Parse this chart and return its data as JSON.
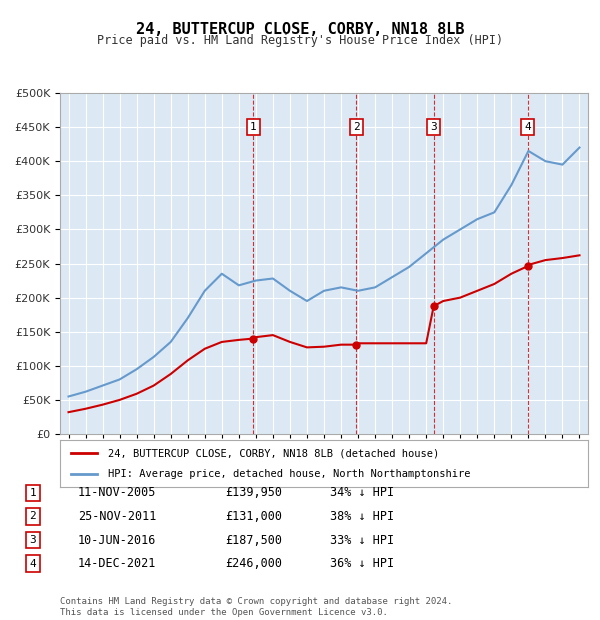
{
  "title": "24, BUTTERCUP CLOSE, CORBY, NN18 8LB",
  "subtitle": "Price paid vs. HM Land Registry's House Price Index (HPI)",
  "background_color": "#dce9f5",
  "plot_bg_color": "#dce9f5",
  "transactions": [
    {
      "num": 1,
      "date": "11-NOV-2005",
      "date_x": 2005.86,
      "price": 139950,
      "label": "34% ↓ HPI"
    },
    {
      "num": 2,
      "date": "25-NOV-2011",
      "date_x": 2011.9,
      "price": 131000,
      "label": "38% ↓ HPI"
    },
    {
      "num": 3,
      "date": "10-JUN-2016",
      "date_x": 2016.44,
      "price": 187500,
      "label": "33% ↓ HPI"
    },
    {
      "num": 4,
      "date": "14-DEC-2021",
      "date_x": 2021.95,
      "price": 246000,
      "label": "36% ↓ HPI"
    }
  ],
  "legend_entries": [
    "24, BUTTERCUP CLOSE, CORBY, NN18 8LB (detached house)",
    "HPI: Average price, detached house, North Northamptonshire"
  ],
  "table_rows": [
    [
      "1",
      "11-NOV-2005",
      "£139,950",
      "34% ↓ HPI"
    ],
    [
      "2",
      "25-NOV-2011",
      "£131,000",
      "38% ↓ HPI"
    ],
    [
      "3",
      "10-JUN-2016",
      "£187,500",
      "33% ↓ HPI"
    ],
    [
      "4",
      "14-DEC-2021",
      "£246,000",
      "36% ↓ HPI"
    ]
  ],
  "footer": "Contains HM Land Registry data © Crown copyright and database right 2024.\nThis data is licensed under the Open Government Licence v3.0.",
  "ylim": [
    0,
    500000
  ],
  "yticks": [
    0,
    50000,
    100000,
    150000,
    200000,
    250000,
    300000,
    350000,
    400000,
    450000,
    500000
  ],
  "xlim_start": 1994.5,
  "xlim_end": 2025.5,
  "red_line_color": "#cc0000",
  "blue_line_color": "#6699cc",
  "dashed_line_color": "#cc0000",
  "grid_color": "#ffffff",
  "tick_label_color": "#333333"
}
